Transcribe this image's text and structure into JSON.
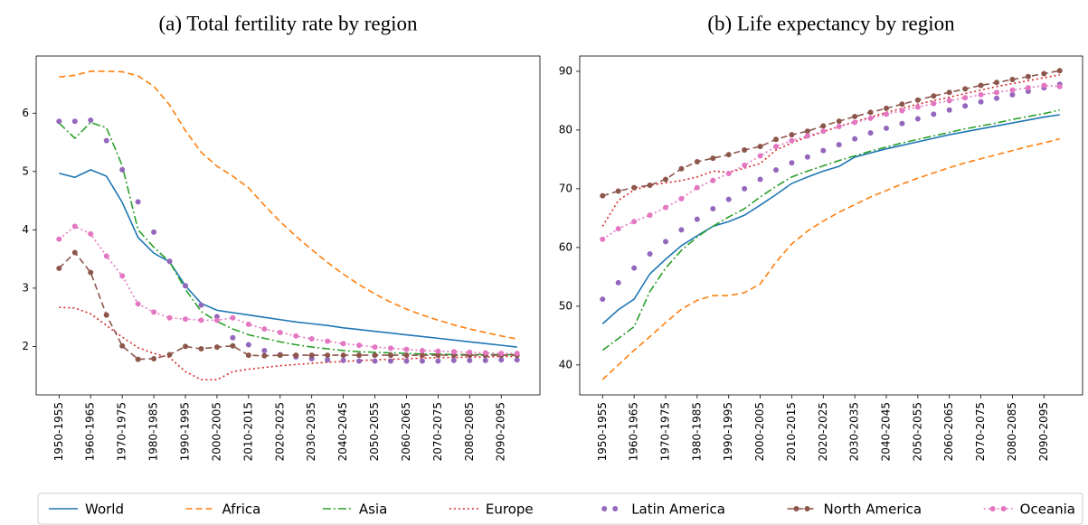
{
  "chart_data": [
    {
      "type": "line",
      "title": "(a) Total fertility rate by region",
      "categories": [
        "1950-1955",
        null,
        "1960-1965",
        null,
        "1970-1975",
        null,
        "1980-1985",
        null,
        "1990-1995",
        null,
        "2000-2005",
        null,
        "2010-2015",
        null,
        "2020-2025",
        null,
        "2030-2035",
        null,
        "2040-2045",
        null,
        "2050-2055",
        null,
        "2060-2065",
        null,
        "2070-2075",
        null,
        "2080-2085",
        null,
        "2090-2095",
        null
      ],
      "ylim": [
        1.17,
        6.98
      ],
      "yticks": [
        2,
        3,
        4,
        5,
        6
      ],
      "legend": "bottom",
      "series": [
        {
          "name": "World",
          "color": "#1f77b4",
          "linestyle": "solid",
          "marker": false,
          "values": [
            4.97,
            4.9,
            5.03,
            4.92,
            4.47,
            3.87,
            3.6,
            3.45,
            3.04,
            2.74,
            2.62,
            2.58,
            2.54,
            2.5,
            2.46,
            2.42,
            2.39,
            2.36,
            2.32,
            2.29,
            2.26,
            2.23,
            2.2,
            2.17,
            2.14,
            2.11,
            2.08,
            2.05,
            2.02,
            1.99
          ]
        },
        {
          "name": "Africa",
          "color": "#ff7f0e",
          "linestyle": "dashed",
          "marker": false,
          "values": [
            6.62,
            6.65,
            6.72,
            6.72,
            6.71,
            6.64,
            6.46,
            6.14,
            5.7,
            5.33,
            5.09,
            4.92,
            4.72,
            4.42,
            4.14,
            3.89,
            3.66,
            3.44,
            3.24,
            3.06,
            2.9,
            2.76,
            2.64,
            2.54,
            2.45,
            2.37,
            2.3,
            2.24,
            2.18,
            2.13
          ]
        },
        {
          "name": "Asia",
          "color": "#2ca02c",
          "linestyle": "dashdot",
          "marker": false,
          "values": [
            5.83,
            5.57,
            5.84,
            5.75,
            5.1,
            4.0,
            3.7,
            3.45,
            2.98,
            2.6,
            2.43,
            2.3,
            2.2,
            2.14,
            2.08,
            2.03,
            1.99,
            1.96,
            1.93,
            1.91,
            1.9,
            1.89,
            1.88,
            1.87,
            1.87,
            1.86,
            1.86,
            1.86,
            1.86,
            1.86
          ]
        },
        {
          "name": "Europe",
          "color": "#d62728",
          "linestyle": "dotted",
          "marker": false,
          "values": [
            2.67,
            2.66,
            2.56,
            2.36,
            2.16,
            1.98,
            1.88,
            1.81,
            1.57,
            1.43,
            1.43,
            1.57,
            1.61,
            1.64,
            1.67,
            1.69,
            1.71,
            1.73,
            1.74,
            1.76,
            1.77,
            1.78,
            1.79,
            1.8,
            1.81,
            1.81,
            1.82,
            1.82,
            1.83,
            1.83
          ]
        },
        {
          "name": "Latin America",
          "color": "#9467bd",
          "linestyle": "none",
          "marker": true,
          "values": [
            5.86,
            5.86,
            5.88,
            5.53,
            5.03,
            4.48,
            3.96,
            3.46,
            3.04,
            2.71,
            2.51,
            2.15,
            2.03,
            1.93,
            1.86,
            1.82,
            1.79,
            1.77,
            1.76,
            1.75,
            1.75,
            1.75,
            1.75,
            1.75,
            1.75,
            1.76,
            1.76,
            1.76,
            1.77,
            1.77
          ]
        },
        {
          "name": "North America",
          "color": "#8c564b",
          "linestyle": "dashed",
          "marker": true,
          "values": [
            3.34,
            3.61,
            3.27,
            2.54,
            2.01,
            1.78,
            1.79,
            1.86,
            2.0,
            1.96,
            1.99,
            2.01,
            1.85,
            1.84,
            1.85,
            1.85,
            1.85,
            1.85,
            1.85,
            1.85,
            1.85,
            1.85,
            1.85,
            1.85,
            1.85,
            1.85,
            1.85,
            1.85,
            1.85,
            1.85
          ]
        },
        {
          "name": "Oceania",
          "color": "#e377c2",
          "linestyle": "dotted",
          "marker": true,
          "values": [
            3.84,
            4.06,
            3.93,
            3.55,
            3.21,
            2.73,
            2.59,
            2.49,
            2.47,
            2.45,
            2.45,
            2.49,
            2.38,
            2.3,
            2.24,
            2.18,
            2.13,
            2.09,
            2.05,
            2.02,
            1.99,
            1.97,
            1.95,
            1.93,
            1.92,
            1.91,
            1.9,
            1.89,
            1.88,
            1.88
          ]
        }
      ]
    },
    {
      "type": "line",
      "title": "(b) Life expectancy by region",
      "categories": [
        "1950-1955",
        null,
        "1960-1965",
        null,
        "1970-1975",
        null,
        "1980-1985",
        null,
        "1990-1995",
        null,
        "2000-2005",
        null,
        "2010-2015",
        null,
        "2020-2025",
        null,
        "2030-2035",
        null,
        "2040-2045",
        null,
        "2050-2055",
        null,
        "2060-2065",
        null,
        "2070-2075",
        null,
        "2080-2085",
        null,
        "2090-2095",
        null
      ],
      "ylim": [
        34.9,
        92.6
      ],
      "yticks": [
        40,
        50,
        60,
        70,
        80,
        90
      ],
      "series": [
        {
          "name": "World",
          "color": "#1f77b4",
          "linestyle": "solid",
          "marker": false,
          "values": [
            47.0,
            49.4,
            51.2,
            55.5,
            58.0,
            60.3,
            62.0,
            63.6,
            64.4,
            65.5,
            67.2,
            69.0,
            70.9,
            72.0,
            73.0,
            73.8,
            75.4,
            76.1,
            76.8,
            77.4,
            78.0,
            78.6,
            79.2,
            79.7,
            80.2,
            80.7,
            81.2,
            81.7,
            82.2,
            82.6
          ]
        },
        {
          "name": "Africa",
          "color": "#ff7f0e",
          "linestyle": "dashed",
          "marker": false,
          "values": [
            37.5,
            40.0,
            42.5,
            44.8,
            47.2,
            49.5,
            51.0,
            51.8,
            51.8,
            52.3,
            53.8,
            57.5,
            60.6,
            62.8,
            64.5,
            66.0,
            67.3,
            68.6,
            69.7,
            70.8,
            71.8,
            72.7,
            73.6,
            74.4,
            75.1,
            75.8,
            76.5,
            77.2,
            77.8,
            78.5
          ]
        },
        {
          "name": "Asia",
          "color": "#2ca02c",
          "linestyle": "dashdot",
          "marker": false,
          "values": [
            42.5,
            44.5,
            46.5,
            52.5,
            56.5,
            59.5,
            61.8,
            63.6,
            65.2,
            66.6,
            68.6,
            70.4,
            72.0,
            73.0,
            73.9,
            74.8,
            75.6,
            76.4,
            77.1,
            77.8,
            78.4,
            79.0,
            79.6,
            80.2,
            80.7,
            81.2,
            81.8,
            82.3,
            82.8,
            83.4
          ]
        },
        {
          "name": "Europe",
          "color": "#d62728",
          "linestyle": "dotted",
          "marker": false,
          "values": [
            63.6,
            68.0,
            69.8,
            70.6,
            71.0,
            71.4,
            72.0,
            73.0,
            72.8,
            73.5,
            74.3,
            76.6,
            77.8,
            78.8,
            79.7,
            80.6,
            81.4,
            82.2,
            83.0,
            83.7,
            84.4,
            85.0,
            85.6,
            86.2,
            86.8,
            87.4,
            87.9,
            88.4,
            88.9,
            89.4
          ]
        },
        {
          "name": "Latin America",
          "color": "#9467bd",
          "linestyle": "none",
          "marker": true,
          "values": [
            51.2,
            54.0,
            56.5,
            58.9,
            61.0,
            63.0,
            64.8,
            66.6,
            68.2,
            70.0,
            71.6,
            73.2,
            74.4,
            75.4,
            76.5,
            77.5,
            78.5,
            79.5,
            80.3,
            81.1,
            81.9,
            82.7,
            83.4,
            84.1,
            84.8,
            85.4,
            86.0,
            86.6,
            87.2,
            87.8
          ]
        },
        {
          "name": "North America",
          "color": "#8c564b",
          "linestyle": "dashed",
          "marker": true,
          "values": [
            68.8,
            69.6,
            70.2,
            70.6,
            71.6,
            73.4,
            74.6,
            75.2,
            75.8,
            76.6,
            77.2,
            78.4,
            79.2,
            79.8,
            80.7,
            81.5,
            82.3,
            83.0,
            83.7,
            84.4,
            85.1,
            85.8,
            86.4,
            87.0,
            87.6,
            88.1,
            88.6,
            89.1,
            89.6,
            90.1
          ]
        },
        {
          "name": "Oceania",
          "color": "#e377c2",
          "linestyle": "dotted",
          "marker": true,
          "values": [
            61.4,
            63.2,
            64.4,
            65.5,
            66.8,
            68.3,
            70.2,
            71.4,
            72.6,
            74.0,
            75.6,
            77.2,
            78.2,
            79.0,
            79.8,
            80.6,
            81.3,
            82.0,
            82.7,
            83.3,
            83.9,
            84.5,
            85.0,
            85.5,
            86.0,
            86.4,
            86.8,
            87.2,
            87.6,
            87.4
          ]
        }
      ]
    }
  ]
}
